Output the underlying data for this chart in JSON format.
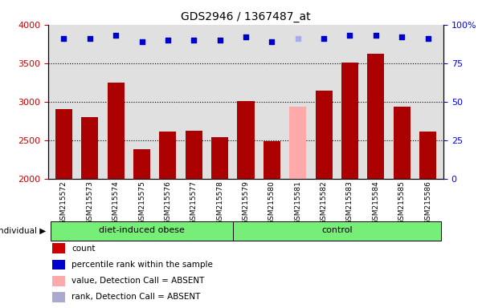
{
  "title": "GDS2946 / 1367487_at",
  "samples": [
    "GSM215572",
    "GSM215573",
    "GSM215574",
    "GSM215575",
    "GSM215576",
    "GSM215577",
    "GSM215578",
    "GSM215579",
    "GSM215580",
    "GSM215581",
    "GSM215582",
    "GSM215583",
    "GSM215584",
    "GSM215585",
    "GSM215586"
  ],
  "bar_values": [
    2900,
    2800,
    3250,
    2380,
    2610,
    2620,
    2540,
    3010,
    2490,
    2930,
    3140,
    3510,
    3620,
    2930,
    2610
  ],
  "bar_colors": [
    "#aa0000",
    "#aa0000",
    "#aa0000",
    "#aa0000",
    "#aa0000",
    "#aa0000",
    "#aa0000",
    "#aa0000",
    "#aa0000",
    "#ffaaaa",
    "#aa0000",
    "#aa0000",
    "#aa0000",
    "#aa0000",
    "#aa0000"
  ],
  "rank_values": [
    91,
    91,
    93,
    89,
    90,
    90,
    90,
    92,
    89,
    91,
    91,
    93,
    93,
    92,
    91
  ],
  "rank_colors": [
    "#0000cc",
    "#0000cc",
    "#0000cc",
    "#0000cc",
    "#0000cc",
    "#0000cc",
    "#0000cc",
    "#0000cc",
    "#0000cc",
    "#aaaaee",
    "#0000cc",
    "#0000cc",
    "#0000cc",
    "#0000cc",
    "#0000cc"
  ],
  "ylim_left": [
    2000,
    4000
  ],
  "ylim_right": [
    0,
    100
  ],
  "yticks_left": [
    2000,
    2500,
    3000,
    3500,
    4000
  ],
  "yticks_right": [
    0,
    25,
    50,
    75,
    100
  ],
  "group1_label": "diet-induced obese",
  "group1_count": 7,
  "group2_label": "control",
  "group2_count": 8,
  "individual_label": "individual",
  "group_bg_color": "#77ee77",
  "plot_bg_color": "#e0e0e0",
  "legend_items": [
    {
      "color": "#cc0000",
      "label": "count"
    },
    {
      "color": "#0000cc",
      "label": "percentile rank within the sample"
    },
    {
      "color": "#ffaaaa",
      "label": "value, Detection Call = ABSENT"
    },
    {
      "color": "#aaaacc",
      "label": "rank, Detection Call = ABSENT"
    }
  ]
}
